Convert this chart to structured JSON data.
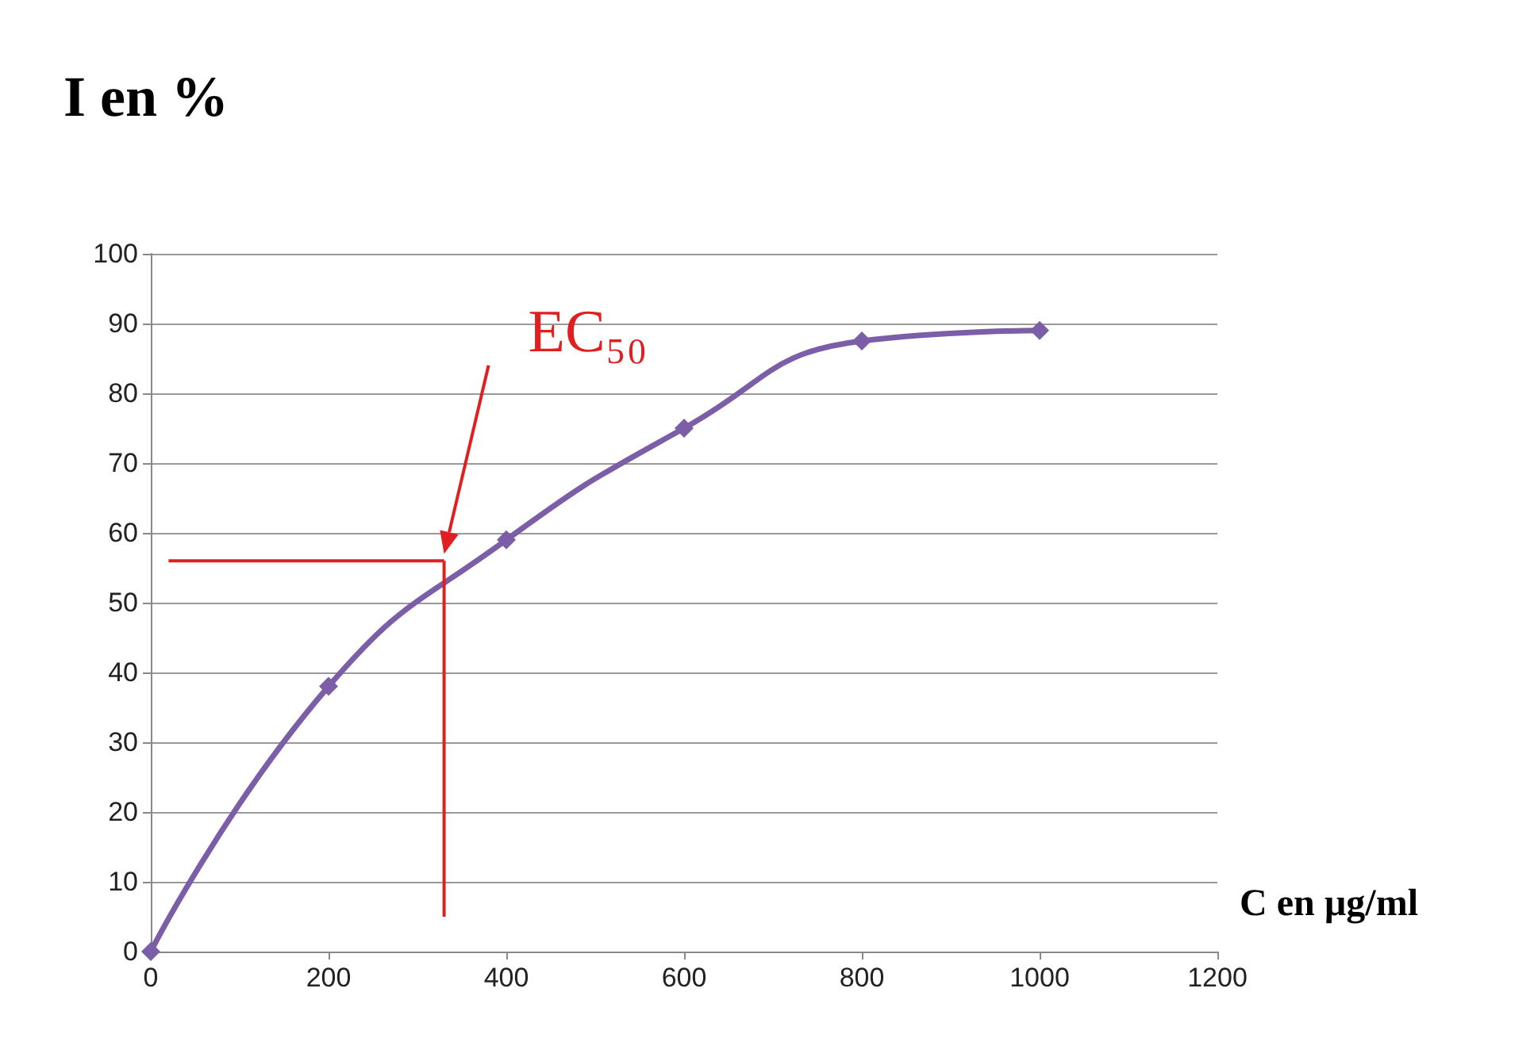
{
  "chart_data": {
    "type": "line",
    "ylabel": "I en %",
    "xlabel": "C en µg/ml",
    "x": [
      0,
      200,
      400,
      600,
      800,
      1000
    ],
    "series": [
      {
        "color": "#7b5ea7",
        "values": [
          0,
          38,
          59,
          75,
          87.5,
          89
        ]
      }
    ],
    "xlim": [
      0,
      1200
    ],
    "xticks": [
      0,
      200,
      400,
      600,
      800,
      1000,
      1200
    ],
    "ylim": [
      0,
      100
    ],
    "yticks": [
      0,
      10,
      20,
      30,
      40,
      50,
      60,
      70,
      80,
      90,
      100
    ],
    "grid": "y",
    "marker": "diamond",
    "line_style": "solid",
    "ref_lines": [
      {
        "axis": "y",
        "value": 56,
        "color": "#e02020"
      },
      {
        "axis": "x",
        "value": 330,
        "color": "#e02020"
      }
    ],
    "annotations": [
      "EC₅₀"
    ]
  }
}
